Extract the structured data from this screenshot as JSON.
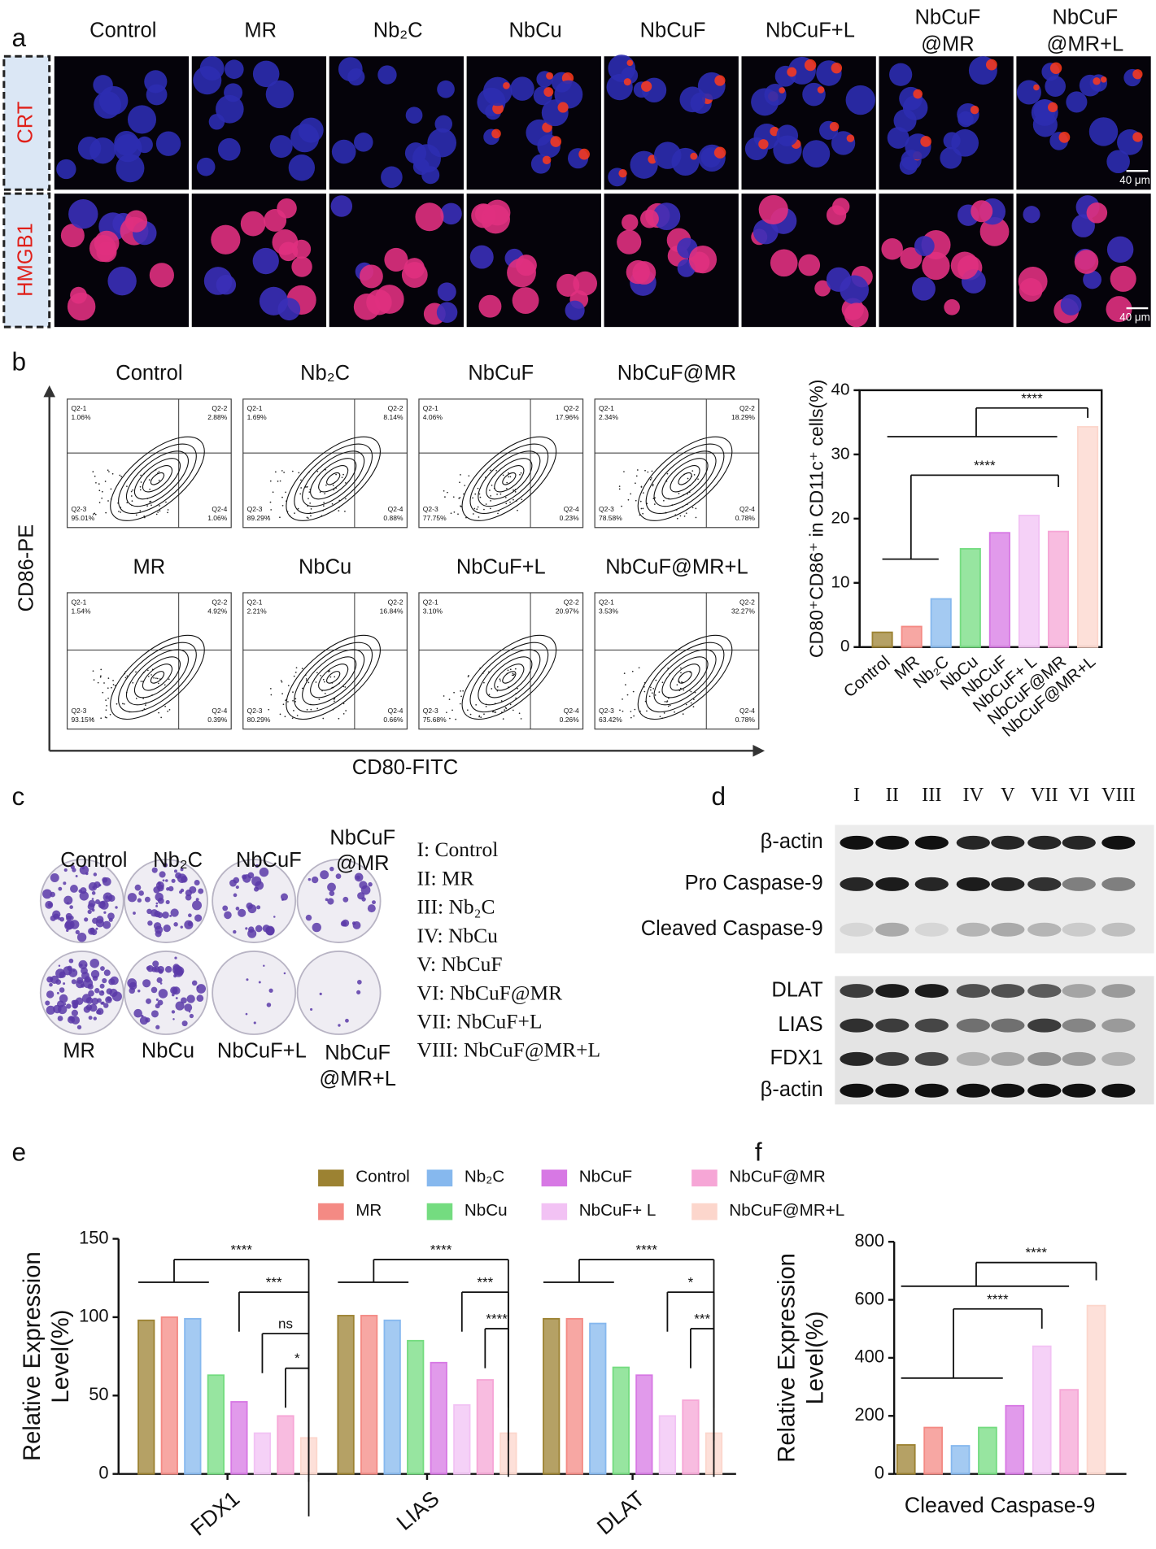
{
  "panel_labels": [
    "a",
    "b",
    "c",
    "d",
    "e",
    "f"
  ],
  "microscopy": {
    "columns": [
      "Control",
      "MR",
      "Nb₂C",
      "NbCu",
      "NbCuF",
      "NbCuF+L",
      "NbCuF\n@MR",
      "NbCuF\n@MR+L"
    ],
    "rows": [
      "CRT",
      "HMGB1"
    ],
    "scale_bar": "40 μm"
  },
  "flow": {
    "y_label": "CD86-PE",
    "x_label": "CD80-FITC",
    "quadrant_names": [
      "Q2-1",
      "Q2-2",
      "Q2-3",
      "Q2-4"
    ],
    "plots": [
      {
        "title": "Control",
        "quadrants": [
          "1.06%",
          "2.88%",
          "95.01%",
          "1.06%"
        ]
      },
      {
        "title": "Nb₂C",
        "quadrants": [
          "1.69%",
          "8.14%",
          "89.29%",
          "0.88%"
        ]
      },
      {
        "title": "NbCuF",
        "quadrants": [
          "4.06%",
          "17.96%",
          "77.75%",
          "0.23%"
        ]
      },
      {
        "title": "NbCuF@MR",
        "quadrants": [
          "2.34%",
          "18.29%",
          "78.58%",
          "0.78%"
        ]
      },
      {
        "title": "MR",
        "quadrants": [
          "1.54%",
          "4.92%",
          "93.15%",
          "0.39%"
        ]
      },
      {
        "title": "NbCu",
        "quadrants": [
          "2.21%",
          "16.84%",
          "80.29%",
          "0.66%"
        ]
      },
      {
        "title": "NbCuF+L",
        "quadrants": [
          "3.10%",
          "20.97%",
          "75.68%",
          "0.26%"
        ]
      },
      {
        "title": "NbCuF@MR+L",
        "quadrants": [
          "3.53%",
          "32.27%",
          "63.42%",
          "0.78%"
        ]
      }
    ]
  },
  "colony": {
    "plates": [
      "Control",
      "Nb₂C",
      "NbCuF",
      "NbCuF\n@MR",
      "MR",
      "NbCu",
      "NbCuF+L",
      "NbCuF\n@MR+L"
    ],
    "legend": [
      "I: Control",
      "II: MR",
      "III: Nb₂C",
      "IV: NbCu",
      "V: NbCuF",
      "VI: NbCuF@MR",
      "VII: NbCuF+L",
      "VIII: NbCuF@MR+L"
    ]
  },
  "western": {
    "lanes": [
      "I",
      "II",
      "III",
      "IV",
      "V",
      "VII",
      "VI",
      "VIII"
    ],
    "rows": [
      "β-actin",
      "Pro Caspase-9",
      "Cleaved Caspase-9",
      "DLAT",
      "LIAS",
      "FDX1",
      "β-actin"
    ]
  },
  "chart_data": [
    {
      "type": "bar",
      "y_label": "CD80⁺CD86⁺ in CD11c⁺ cells(%)",
      "categories": [
        "Control",
        "MR",
        "Nb₂C",
        "NbCu",
        "NbCuF",
        "NbCuF+ L",
        "NbCuF@MR",
        "NbCuF@MR+L"
      ],
      "values": [
        2.3,
        3.2,
        7.5,
        15.3,
        17.8,
        20.5,
        18,
        34.3
      ],
      "colors": [
        "#9c8232",
        "#f48a84",
        "#86b8ee",
        "#74dc80",
        "#d778e4",
        "#f2c2f4",
        "#f6a6d6",
        "#fcd6cc"
      ],
      "ylim": [
        0,
        40
      ],
      "yticks": [
        0,
        10,
        20,
        30,
        40
      ],
      "annotations": [
        "****",
        "****"
      ]
    },
    {
      "type": "grouped_bar",
      "y_label": "Relative Expression\nLevel(%)",
      "categories": [
        "FDX1",
        "LIAS",
        "DLAT"
      ],
      "legend": true,
      "series": [
        {
          "name": "Control",
          "color": "#9c8232",
          "values": [
            98,
            101,
            99
          ]
        },
        {
          "name": "MR",
          "color": "#f48a84",
          "values": [
            100,
            101,
            99
          ]
        },
        {
          "name": "Nb₂C",
          "color": "#86b8ee",
          "values": [
            99,
            98,
            96
          ]
        },
        {
          "name": "NbCu",
          "color": "#74dc80",
          "values": [
            63,
            85,
            68
          ]
        },
        {
          "name": "NbCuF",
          "color": "#d778e4",
          "values": [
            46,
            71,
            63
          ]
        },
        {
          "name": "NbCuF+ L",
          "color": "#f2c2f4",
          "values": [
            26,
            44,
            37
          ]
        },
        {
          "name": "NbCuF@MR",
          "color": "#f6a6d6",
          "values": [
            37,
            60,
            47
          ]
        },
        {
          "name": "NbCuF@MR+L",
          "color": "#fcd6cc",
          "values": [
            23,
            26,
            26
          ]
        }
      ],
      "ylim": [
        0,
        150
      ],
      "yticks": [
        0,
        50,
        100,
        150
      ],
      "annotations": [
        "****",
        "***",
        "ns",
        "*",
        "****",
        "***",
        "****",
        "****",
        "*",
        "***"
      ]
    },
    {
      "type": "grouped_bar",
      "y_label": "Relative Expression\nLevel(%)",
      "categories": [
        "Cleaved Caspase-9"
      ],
      "legend": false,
      "series": [
        {
          "color": "#9c8232",
          "values": [
            100
          ]
        },
        {
          "color": "#f48a84",
          "values": [
            160
          ]
        },
        {
          "color": "#86b8ee",
          "values": [
            97
          ]
        },
        {
          "color": "#74dc80",
          "values": [
            160
          ]
        },
        {
          "color": "#d778e4",
          "values": [
            235
          ]
        },
        {
          "color": "#f2c2f4",
          "values": [
            440
          ]
        },
        {
          "color": "#f6a6d6",
          "values": [
            290
          ]
        },
        {
          "color": "#fcd6cc",
          "values": [
            580
          ]
        }
      ],
      "ylim": [
        0,
        800
      ],
      "yticks": [
        0,
        200,
        400,
        600,
        800
      ],
      "annotations": [
        "****",
        "****"
      ]
    }
  ]
}
